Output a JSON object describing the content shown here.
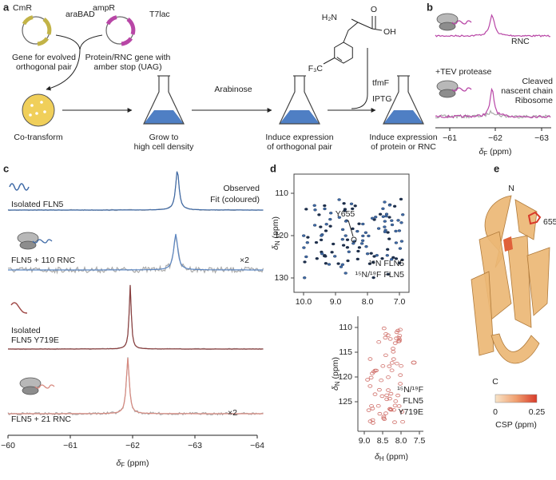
{
  "a": {
    "label": "a",
    "plasmids": [
      {
        "marker": "CmR",
        "promoter": "araBAD",
        "caption": [
          "Gene for evolved",
          "orthogonal pair"
        ]
      },
      {
        "marker": "ampR",
        "promoter": "T7lac",
        "caption": [
          "Protein/RNC gene with",
          "amber stop (UAG)"
        ]
      }
    ],
    "steps": [
      [
        "Co-transform"
      ],
      [
        "Grow to",
        "high cell density"
      ],
      [
        "Induce expression",
        "of orthogonal pair"
      ],
      [
        "Induce expression",
        "of protein or RNC"
      ]
    ],
    "inducers": [
      "Arabinose",
      "IPTG"
    ],
    "molecule": {
      "name": "tfmF",
      "amine": "H₂N",
      "hydroxyl": "OH",
      "carbonyl": "O",
      "trifluoromethyl": "F₃C"
    }
  },
  "b": {
    "label": "b",
    "trace": "RNC",
    "treatment": "+TEV protease",
    "legend": [
      [
        "Cleaved",
        "nascent chain"
      ],
      [
        "Ribosome"
      ]
    ],
    "xticks": [
      "−61",
      "−62",
      "−63"
    ],
    "xlabel": {
      "symbol": "δ",
      "sub": "F",
      "unit": " (ppm)"
    }
  },
  "c": {
    "label": "c",
    "legend": [
      "Observed",
      "Fit (coloured)"
    ],
    "spectra": [
      {
        "name": [
          "Isolated FLN5"
        ]
      },
      {
        "name": [
          "FLN5 + 110 RNC"
        ],
        "scale": "×2"
      },
      {
        "name": [
          "Isolated",
          "FLN5 Y719E"
        ]
      },
      {
        "name": [
          "FLN5 + 21 RNC"
        ],
        "scale": "×2"
      }
    ],
    "xticks": [
      "−60",
      "−61",
      "−62",
      "−63",
      "−64"
    ],
    "xlabel": {
      "symbol": "δ",
      "sub": "F",
      "unit": " (ppm)"
    }
  },
  "d": {
    "label": "d",
    "top": {
      "ylabel": {
        "symbol": "δ",
        "sub": "N",
        "unit": " (ppm)"
      },
      "yticks": [
        "110",
        "120",
        "130"
      ],
      "xticks": [
        "10.0",
        "9.0",
        "8.0",
        "7.0"
      ],
      "annotation": "Y655",
      "legend": [
        "¹⁵N FLN5",
        "¹⁵N/¹⁹F FLN5"
      ]
    },
    "bottom": {
      "ylabel": {
        "symbol": "δ",
        "sub": "N",
        "unit": " (ppm)"
      },
      "yticks": [
        "110",
        "115",
        "120",
        "125"
      ],
      "xticks": [
        "9.0",
        "8.5",
        "8.0",
        "7.5"
      ],
      "xlabel": {
        "symbol": "δ",
        "sub": "H",
        "unit": " (ppm)"
      },
      "legend": [
        "¹⁵N/¹⁹F",
        "FLN5",
        "Y719E"
      ]
    }
  },
  "e": {
    "label": "e",
    "termini": [
      "N",
      "C"
    ],
    "residue": "655",
    "colorbar": {
      "ticks": [
        "0",
        "0.25"
      ],
      "label": "CSP (ppm)"
    }
  }
}
